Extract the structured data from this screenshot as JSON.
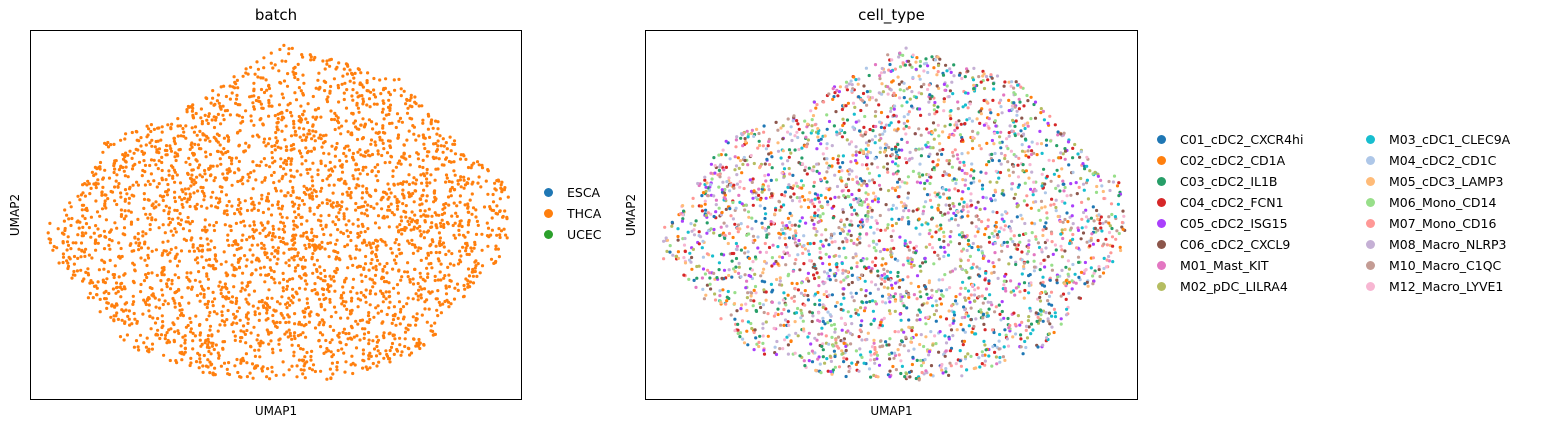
{
  "chart_data": [
    {
      "type": "scatter",
      "title": "batch",
      "xlabel": "UMAP1",
      "ylabel": "UMAP2",
      "xticks": [],
      "yticks": [],
      "legend_position": "right",
      "legend": [
        {
          "label": "ESCA",
          "color": "#1f77b4"
        },
        {
          "label": "THCA",
          "color": "#ff7f0e"
        },
        {
          "label": "UCEC",
          "color": "#2ca02c"
        }
      ],
      "point_color": "#ff7f0e",
      "point_count": 3200,
      "cloud_shape": "single roughly oval cloud of points, all THCA"
    },
    {
      "type": "scatter",
      "title": "cell_type",
      "xlabel": "UMAP1",
      "ylabel": "UMAP2",
      "xticks": [],
      "yticks": [],
      "legend_position": "right",
      "legend": [
        {
          "label": "C01_cDC2_CXCR4hi",
          "color": "#1f77b4"
        },
        {
          "label": "C02_cDC2_CD1A",
          "color": "#ff7f0e"
        },
        {
          "label": "C03_cDC2_IL1B",
          "color": "#279e68"
        },
        {
          "label": "C04_cDC2_FCN1",
          "color": "#d62728"
        },
        {
          "label": "C05_cDC2_ISG15",
          "color": "#aa40fc"
        },
        {
          "label": "C06_cDC2_CXCL9",
          "color": "#8c564b"
        },
        {
          "label": "M01_Mast_KIT",
          "color": "#e377c2"
        },
        {
          "label": "M02_pDC_LILRA4",
          "color": "#b5bd61"
        },
        {
          "label": "M03_cDC1_CLEC9A",
          "color": "#17becf"
        },
        {
          "label": "M04_cDC2_CD1C",
          "color": "#aec7e8"
        },
        {
          "label": "M05_cDC3_LAMP3",
          "color": "#ffbb78"
        },
        {
          "label": "M06_Mono_CD14",
          "color": "#98df8a"
        },
        {
          "label": "M07_Mono_CD16",
          "color": "#ff9896"
        },
        {
          "label": "M08_Macro_NLRP3",
          "color": "#c5b0d5"
        },
        {
          "label": "M10_Macro_C1QC",
          "color": "#c49c94"
        },
        {
          "label": "M12_Macro_LYVE1",
          "color": "#f7b6d2"
        }
      ],
      "point_count": 3200,
      "cloud_shape": "same cloud as batch panel, points colored by cell type, evenly mixed"
    }
  ]
}
